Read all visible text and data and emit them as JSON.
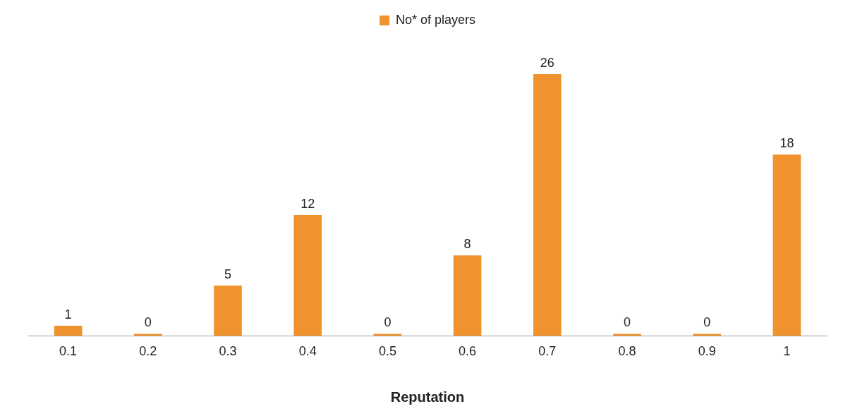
{
  "chart_data": {
    "type": "bar",
    "xlabel": "Reputation",
    "categories": [
      "0.1",
      "0.2",
      "0.3",
      "0.4",
      "0.5",
      "0.6",
      "0.7",
      "0.8",
      "0.9",
      "1"
    ],
    "series": [
      {
        "name": "No* of players",
        "color": "#f0922e",
        "values": [
          1,
          0,
          5,
          12,
          0,
          8,
          26,
          0,
          0,
          18
        ]
      }
    ],
    "data_labels": true,
    "legend": "top",
    "tick_labels": "x",
    "grid": false
  }
}
